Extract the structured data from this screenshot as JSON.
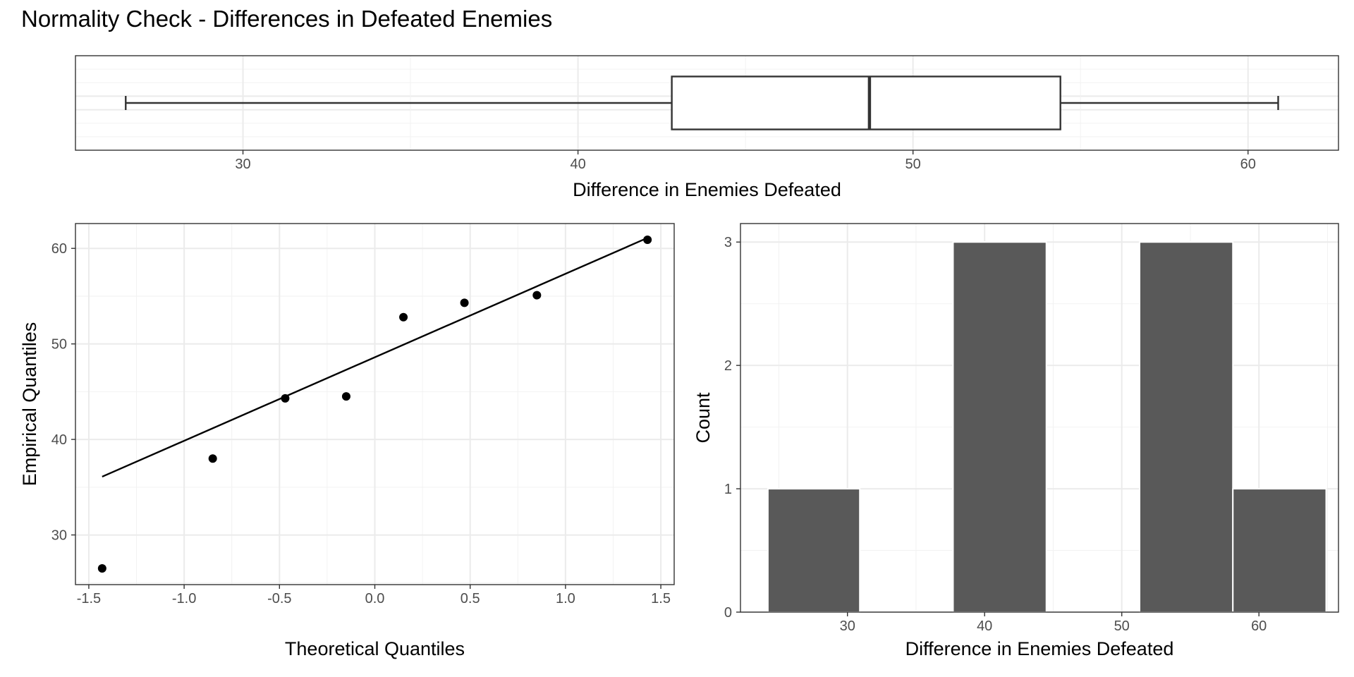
{
  "title": "Normality Check - Differences in Defeated Enemies",
  "colors": {
    "bar_fill": "#595959",
    "point": "#000000",
    "box_stroke": "#333333"
  },
  "chart_data": [
    {
      "type": "boxplot",
      "orientation": "horizontal",
      "xlabel": "Difference in Enemies Defeated",
      "xlim": [
        25,
        62.7
      ],
      "xticks": [
        30,
        40,
        50,
        60
      ],
      "whisker_low": 26.5,
      "q1": 42.8,
      "median": 48.7,
      "q3": 54.4,
      "whisker_high": 60.9
    },
    {
      "type": "scatter",
      "xlabel": "Theoretical Quantiles",
      "ylabel": "Empirical Quantiles",
      "xlim": [
        -1.57,
        1.57
      ],
      "ylim": [
        24.8,
        62.6
      ],
      "xticks": [
        "-1.5",
        "-1.0",
        "-0.5",
        "0.0",
        "0.5",
        "1.0",
        "1.5"
      ],
      "yticks": [
        30,
        40,
        50,
        60
      ],
      "points": [
        [
          -1.43,
          26.5
        ],
        [
          -0.85,
          38.0
        ],
        [
          -0.47,
          44.3
        ],
        [
          -0.15,
          44.5
        ],
        [
          0.15,
          52.8
        ],
        [
          0.47,
          54.3
        ],
        [
          0.85,
          55.1
        ],
        [
          1.43,
          60.9
        ]
      ],
      "reference_line": [
        [
          -1.43,
          36.1
        ],
        [
          1.43,
          61.1
        ]
      ]
    },
    {
      "type": "bar",
      "subtype": "histogram",
      "xlabel": "Difference in Enemies Defeated",
      "ylabel": "Count",
      "xlim": [
        22.2,
        65.8
      ],
      "ylim": [
        0,
        3.15
      ],
      "xticks": [
        30,
        40,
        50,
        60
      ],
      "yticks": [
        0,
        1,
        2,
        3
      ],
      "bins": [
        {
          "x0": 24.2,
          "x1": 30.9,
          "count": 1
        },
        {
          "x0": 30.9,
          "x1": 37.7,
          "count": 0
        },
        {
          "x0": 37.7,
          "x1": 44.5,
          "count": 3
        },
        {
          "x0": 44.5,
          "x1": 51.3,
          "count": 0
        },
        {
          "x0": 51.3,
          "x1": 58.1,
          "count": 3
        },
        {
          "x0": 58.1,
          "x1": 64.9,
          "count": 1
        }
      ]
    }
  ]
}
